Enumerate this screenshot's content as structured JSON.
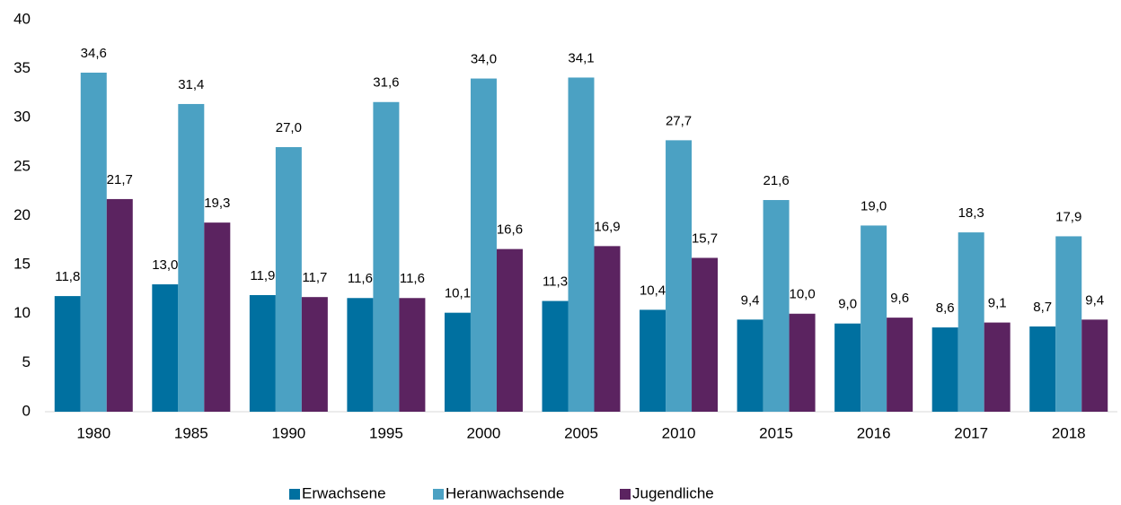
{
  "chart_data": {
    "type": "bar",
    "categories": [
      "1980",
      "1985",
      "1990",
      "1995",
      "2000",
      "2005",
      "2010",
      "2015",
      "2016",
      "2017",
      "2018"
    ],
    "series": [
      {
        "name": "Erwachsene",
        "color": "#0070a0",
        "values": [
          11.8,
          13.0,
          11.9,
          11.6,
          10.1,
          11.3,
          10.4,
          9.4,
          9.0,
          8.6,
          8.7
        ],
        "value_labels": [
          "11,8",
          "13,0",
          "11,9",
          "11,6",
          "10,1",
          "11,3",
          "10,4",
          "9,4",
          "9,0",
          "8,6",
          "8,7"
        ]
      },
      {
        "name": "Heranwachsende",
        "color": "#4ba1c3",
        "values": [
          34.6,
          31.4,
          27.0,
          31.6,
          34.0,
          34.1,
          27.7,
          21.6,
          19.0,
          18.3,
          17.9
        ],
        "value_labels": [
          "34,6",
          "31,4",
          "27,0",
          "31,6",
          "34,0",
          "34,1",
          "27,7",
          "21,6",
          "19,0",
          "18,3",
          "17,9"
        ]
      },
      {
        "name": "Jugendliche",
        "color": "#5b2360",
        "values": [
          21.7,
          19.3,
          11.7,
          11.6,
          16.6,
          16.9,
          15.7,
          10.0,
          9.6,
          9.1,
          9.4
        ],
        "value_labels": [
          "21,7",
          "19,3",
          "11,7",
          "11,6",
          "16,6",
          "16,9",
          "15,7",
          "10,0",
          "9,6",
          "9,1",
          "9,4"
        ]
      }
    ],
    "ylim": [
      0,
      40
    ],
    "yticks": [
      0,
      5,
      10,
      15,
      20,
      25,
      30,
      35,
      40
    ],
    "grid": false,
    "legend": "bottom"
  }
}
